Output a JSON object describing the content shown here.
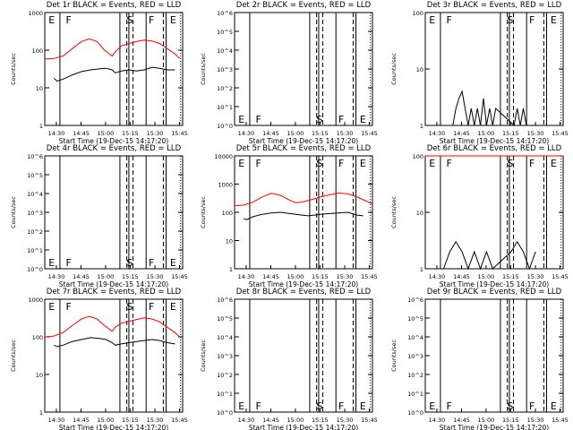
{
  "chart_data": [
    {
      "type": "line",
      "title": "Det 1r BLACK = Events, RED = LLD",
      "xlabel": "Start Time (19-Dec-15 14:17:20)",
      "ylabel": "Counts/sec",
      "yscale": "log",
      "ylim": [
        1,
        1000
      ],
      "yticks": [
        "1",
        "10",
        "100",
        "1000"
      ],
      "xticks": [
        "14:30",
        "14:45",
        "15:00",
        "15:15",
        "15:30",
        "15:45"
      ],
      "markers": [
        "E",
        "F",
        "S",
        "F",
        "E"
      ],
      "series": [
        {
          "color": "#ff0000",
          "x": [
            0,
            6,
            12,
            18,
            24,
            29,
            34,
            39,
            44,
            46,
            50,
            55,
            60,
            65,
            70,
            75,
            80,
            85,
            88
          ],
          "y": [
            58,
            60,
            70,
            110,
            170,
            200,
            170,
            100,
            70,
            90,
            130,
            150,
            170,
            185,
            175,
            150,
            110,
            80,
            60
          ]
        },
        {
          "color": "#000000",
          "x": [
            6,
            8,
            12,
            18,
            24,
            30,
            36,
            40,
            44,
            46,
            50,
            55,
            60,
            65,
            70,
            75,
            80,
            85
          ],
          "y": [
            18,
            15,
            17,
            22,
            27,
            30,
            32,
            33,
            30,
            25,
            28,
            30,
            28,
            30,
            35,
            33,
            30,
            30
          ]
        }
      ]
    },
    {
      "type": "line",
      "title": "Det 2r BLACK = Events, RED = LLD",
      "xlabel": "Start Time (19-Dec-15 14:17:20)",
      "ylabel": "Counts/sec",
      "yscale": "log",
      "ylim": [
        1,
        1000000
      ],
      "yticks": [
        "10^0",
        "10^1",
        "10^2",
        "10^3",
        "10^4",
        "10^5",
        "10^6"
      ],
      "xticks": [
        "14:30",
        "14:45",
        "15:00",
        "15:15",
        "15:30",
        "15:45"
      ],
      "markers": [
        "E",
        "F",
        "S",
        "F",
        "E"
      ],
      "series": []
    },
    {
      "type": "line",
      "title": "Det 3r BLACK = Events, RED = LLD",
      "xlabel": "Start Time (19-Dec-15 14:17:20)",
      "ylabel": "Counts/sec",
      "yscale": "log",
      "ylim": [
        1,
        100
      ],
      "yticks": [
        "1",
        "10",
        "100"
      ],
      "xticks": [
        "14:30",
        "14:45",
        "15:00",
        "15:15",
        "15:30",
        "15:45"
      ],
      "markers": [
        "E",
        "F",
        "S",
        "F",
        "E"
      ],
      "series": [
        {
          "color": "#000000",
          "x": [
            18,
            20,
            22,
            24,
            26,
            28,
            30,
            32,
            34,
            36,
            38,
            40,
            42,
            44,
            46,
            58,
            60,
            62,
            64,
            66
          ],
          "y": [
            1,
            2,
            3,
            4,
            2,
            1,
            2,
            1,
            2,
            1,
            3,
            1,
            2,
            1,
            2,
            1,
            2,
            1,
            2,
            1
          ]
        }
      ]
    },
    {
      "type": "line",
      "title": "Det 4r BLACK = Events, RED = LLD",
      "xlabel": "Start Time (19-Dec-15 14:17:20)",
      "ylabel": "Counts/sec",
      "yscale": "log",
      "ylim": [
        1,
        1000000
      ],
      "yticks": [
        "10^0",
        "10^1",
        "10^2",
        "10^3",
        "10^4",
        "10^5",
        "10^6"
      ],
      "xticks": [
        "14:30",
        "14:45",
        "15:00",
        "15:15",
        "15:30",
        "15:45"
      ],
      "markers": [
        "E",
        "F",
        "S",
        "F",
        "E"
      ],
      "series": []
    },
    {
      "type": "line",
      "title": "Det 5r BLACK = Events, RED = LLD",
      "xlabel": "Start Time (19-Dec-15 14:17:20)",
      "ylabel": "Counts/sec",
      "yscale": "log",
      "ylim": [
        1,
        10000
      ],
      "yticks": [
        "1",
        "10",
        "100",
        "1000",
        "10000"
      ],
      "xticks": [
        "14:30",
        "14:45",
        "15:00",
        "15:15",
        "15:30",
        "15:45"
      ],
      "markers": [
        "E",
        "F",
        "S",
        "F",
        "E"
      ],
      "series": [
        {
          "color": "#ff0000",
          "x": [
            0,
            6,
            12,
            18,
            24,
            30,
            36,
            40,
            44,
            48,
            52,
            56,
            62,
            68,
            74,
            80,
            86,
            90
          ],
          "y": [
            170,
            180,
            230,
            350,
            470,
            400,
            270,
            220,
            230,
            260,
            300,
            350,
            420,
            480,
            450,
            350,
            250,
            200
          ]
        },
        {
          "color": "#000000",
          "x": [
            6,
            8,
            12,
            18,
            24,
            30,
            36,
            40,
            44,
            48,
            52,
            56,
            62,
            68,
            74,
            80,
            84
          ],
          "y": [
            60,
            55,
            70,
            85,
            95,
            100,
            90,
            85,
            80,
            75,
            80,
            85,
            90,
            95,
            100,
            80,
            75
          ]
        }
      ]
    },
    {
      "type": "line",
      "title": "Det 6r BLACK = Events, RED = LLD",
      "xlabel": "Start Time (19-Dec-15 14:17:20)",
      "ylabel": "Counts/sec",
      "yscale": "log",
      "ylim": [
        1,
        100
      ],
      "yticks": [
        "1",
        "10",
        "100"
      ],
      "xticks": [
        "14:30",
        "14:45",
        "15:00",
        "15:15",
        "15:30",
        "15:45"
      ],
      "markers": [
        "E",
        "F",
        "S",
        "F",
        "E"
      ],
      "series": [
        {
          "color": "#ff0000",
          "x": [
            0,
            10,
            20,
            30,
            40,
            50,
            60,
            70,
            80,
            90
          ],
          "y": [
            100,
            100,
            100,
            100,
            100,
            100,
            100,
            100,
            100,
            100
          ]
        },
        {
          "color": "#000000",
          "x": [
            12,
            16,
            20,
            24,
            28,
            32,
            36,
            40,
            44,
            56,
            60,
            64,
            68,
            72
          ],
          "y": [
            1,
            2,
            3,
            2,
            1,
            2,
            1,
            2,
            1,
            2,
            3,
            2,
            1,
            2
          ]
        }
      ]
    },
    {
      "type": "line",
      "title": "Det 7r BLACK = Events, RED = LLD",
      "xlabel": "Start Time (19-Dec-15 14:17:20)",
      "ylabel": "Counts/sec",
      "yscale": "log",
      "ylim": [
        1,
        1000
      ],
      "yticks": [
        "1",
        "10",
        "100",
        "1000"
      ],
      "xticks": [
        "14:30",
        "14:45",
        "15:00",
        "15:15",
        "15:30",
        "15:45"
      ],
      "markers": [
        "E",
        "F",
        "S",
        "F",
        "E"
      ],
      "series": [
        {
          "color": "#ff0000",
          "x": [
            0,
            6,
            12,
            18,
            24,
            29,
            34,
            39,
            44,
            46,
            50,
            55,
            60,
            65,
            70,
            75,
            80,
            85,
            88
          ],
          "y": [
            100,
            105,
            130,
            200,
            300,
            350,
            300,
            200,
            140,
            180,
            230,
            260,
            290,
            320,
            300,
            250,
            180,
            130,
            100
          ]
        },
        {
          "color": "#000000",
          "x": [
            6,
            8,
            12,
            18,
            24,
            30,
            36,
            40,
            44,
            46,
            50,
            55,
            60,
            65,
            70,
            75,
            80,
            85
          ],
          "y": [
            60,
            55,
            60,
            75,
            85,
            95,
            90,
            85,
            70,
            60,
            65,
            70,
            75,
            80,
            85,
            80,
            70,
            65
          ]
        }
      ]
    },
    {
      "type": "line",
      "title": "Det 8r BLACK = Events, RED = LLD",
      "xlabel": "Start Time (19-Dec-15 14:17:20)",
      "ylabel": "Counts/sec",
      "yscale": "log",
      "ylim": [
        1,
        1000000
      ],
      "yticks": [
        "10^0",
        "10^1",
        "10^2",
        "10^3",
        "10^4",
        "10^5",
        "10^6"
      ],
      "xticks": [
        "14:30",
        "14:45",
        "15:00",
        "15:15",
        "15:30",
        "15:45"
      ],
      "markers": [
        "E",
        "F",
        "S",
        "F",
        "E"
      ],
      "series": []
    },
    {
      "type": "line",
      "title": "Det 9r BLACK = Events, RED = LLD",
      "xlabel": "Start Time (19-Dec-15 14:17:20)",
      "ylabel": "Counts/sec",
      "yscale": "log",
      "ylim": [
        1,
        1000000
      ],
      "yticks": [
        "10^0",
        "10^1",
        "10^2",
        "10^3",
        "10^4",
        "10^5",
        "10^6"
      ],
      "xticks": [
        "14:30",
        "14:45",
        "15:00",
        "15:15",
        "15:30",
        "15:45"
      ],
      "markers": [
        "E",
        "F",
        "S",
        "F",
        "E"
      ],
      "series": []
    }
  ]
}
